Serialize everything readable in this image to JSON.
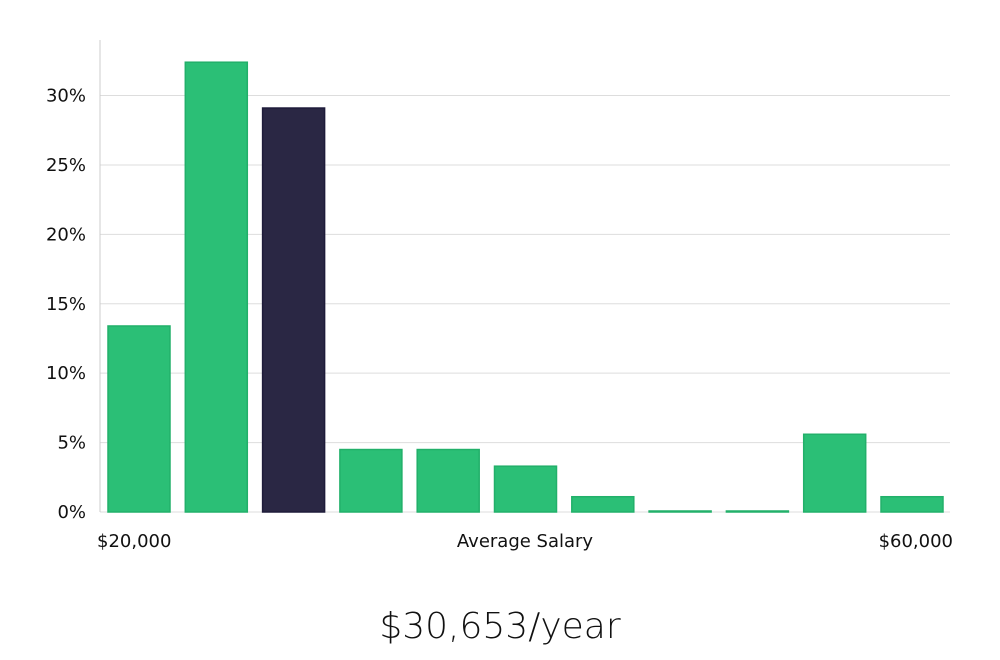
{
  "chart_data": {
    "type": "bar",
    "xlabel": "Average Salary",
    "x_range_labels": {
      "start": "$20,000",
      "end": "$60,000"
    },
    "y_ticks": [
      "0%",
      "5%",
      "10%",
      "15%",
      "20%",
      "25%",
      "30%"
    ],
    "ylim": [
      0,
      34
    ],
    "grid": true,
    "values": [
      13.4,
      32.4,
      29.1,
      4.5,
      4.5,
      3.3,
      1.1,
      0.05,
      0.05,
      5.6,
      1.1
    ],
    "highlight_index": 2,
    "colors": {
      "bar": "#2bbf76",
      "bar_stroke": "#22b06a",
      "highlight": "#2a2744",
      "grid": "#dddddd",
      "axis": "#cccccc"
    }
  },
  "summary": {
    "text": "$30,653/year"
  }
}
